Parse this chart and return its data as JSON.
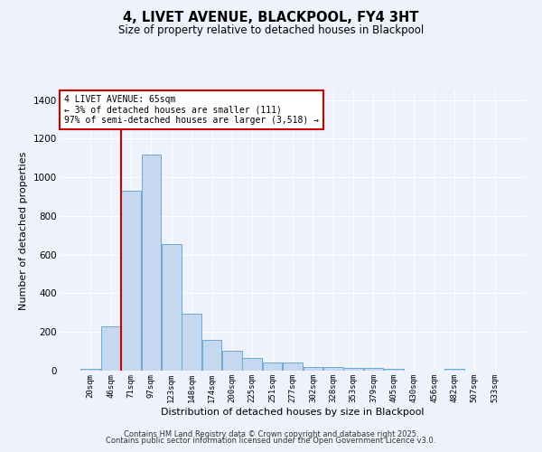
{
  "title": "4, LIVET AVENUE, BLACKPOOL, FY4 3HT",
  "subtitle": "Size of property relative to detached houses in Blackpool",
  "xlabel": "Distribution of detached houses by size in Blackpool",
  "ylabel": "Number of detached properties",
  "categories": [
    "20sqm",
    "46sqm",
    "71sqm",
    "97sqm",
    "123sqm",
    "148sqm",
    "174sqm",
    "200sqm",
    "225sqm",
    "251sqm",
    "277sqm",
    "302sqm",
    "328sqm",
    "353sqm",
    "379sqm",
    "405sqm",
    "430sqm",
    "456sqm",
    "482sqm",
    "507sqm",
    "533sqm"
  ],
  "values": [
    10,
    230,
    930,
    1120,
    655,
    295,
    160,
    105,
    65,
    40,
    40,
    20,
    20,
    15,
    15,
    8,
    0,
    0,
    10,
    0,
    0
  ],
  "bar_color": "#c5d8f0",
  "bar_edge_color": "#6aaad4",
  "bar_width": 0.97,
  "red_line_x": 1.5,
  "annotation_line1": "4 LIVET AVENUE: 65sqm",
  "annotation_line2": "← 3% of detached houses are smaller (111)",
  "annotation_line3": "97% of semi-detached houses are larger (3,518) →",
  "annotation_box_color": "#ffffff",
  "annotation_box_edge": "#cc0000",
  "red_line_color": "#cc0000",
  "background_color": "#eef2fb",
  "grid_color": "#ffffff",
  "ylim": [
    0,
    1450
  ],
  "yticks": [
    0,
    200,
    400,
    600,
    800,
    1000,
    1200,
    1400
  ],
  "footer1": "Contains HM Land Registry data © Crown copyright and database right 2025.",
  "footer2": "Contains public sector information licensed under the Open Government Licence v3.0."
}
